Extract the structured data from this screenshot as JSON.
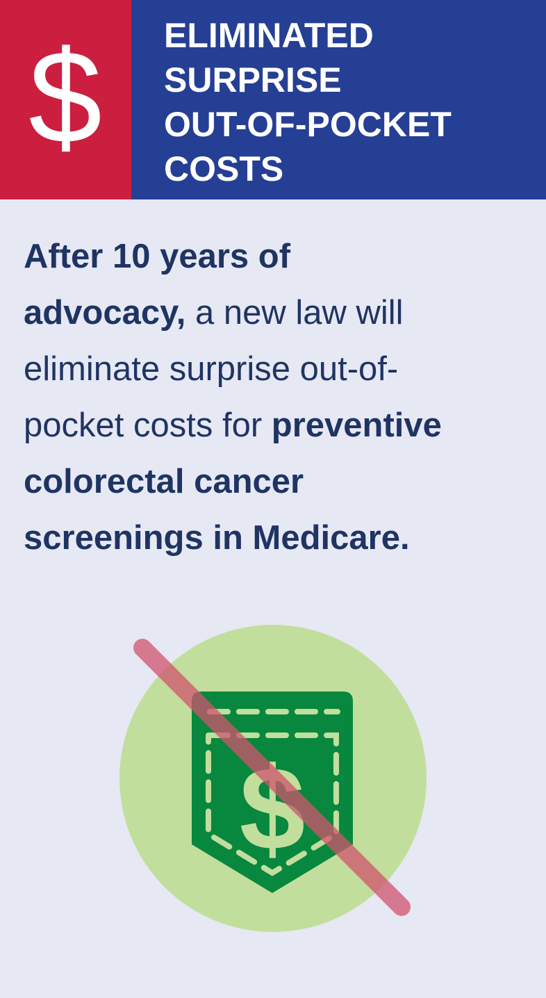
{
  "header": {
    "icon": "$",
    "title_lines": [
      "ELIMINATED",
      "SURPRISE",
      "OUT-OF-POCKET",
      "COSTS"
    ]
  },
  "body": {
    "lines": [
      [
        {
          "text": "After 10 years of",
          "bold": true
        }
      ],
      [
        {
          "text": "advocacy,",
          "bold": true
        },
        {
          "text": " a new law will",
          "bold": false
        }
      ],
      [
        {
          "text": "eliminate surprise out-of-",
          "bold": false
        }
      ],
      [
        {
          "text": "pocket costs for ",
          "bold": false
        },
        {
          "text": "preventive",
          "bold": true
        }
      ],
      [
        {
          "text": "colorectal cancer",
          "bold": true
        }
      ],
      [
        {
          "text": "screenings in Medicare.",
          "bold": true
        }
      ]
    ]
  },
  "illustration": {
    "symbol": "$"
  }
}
